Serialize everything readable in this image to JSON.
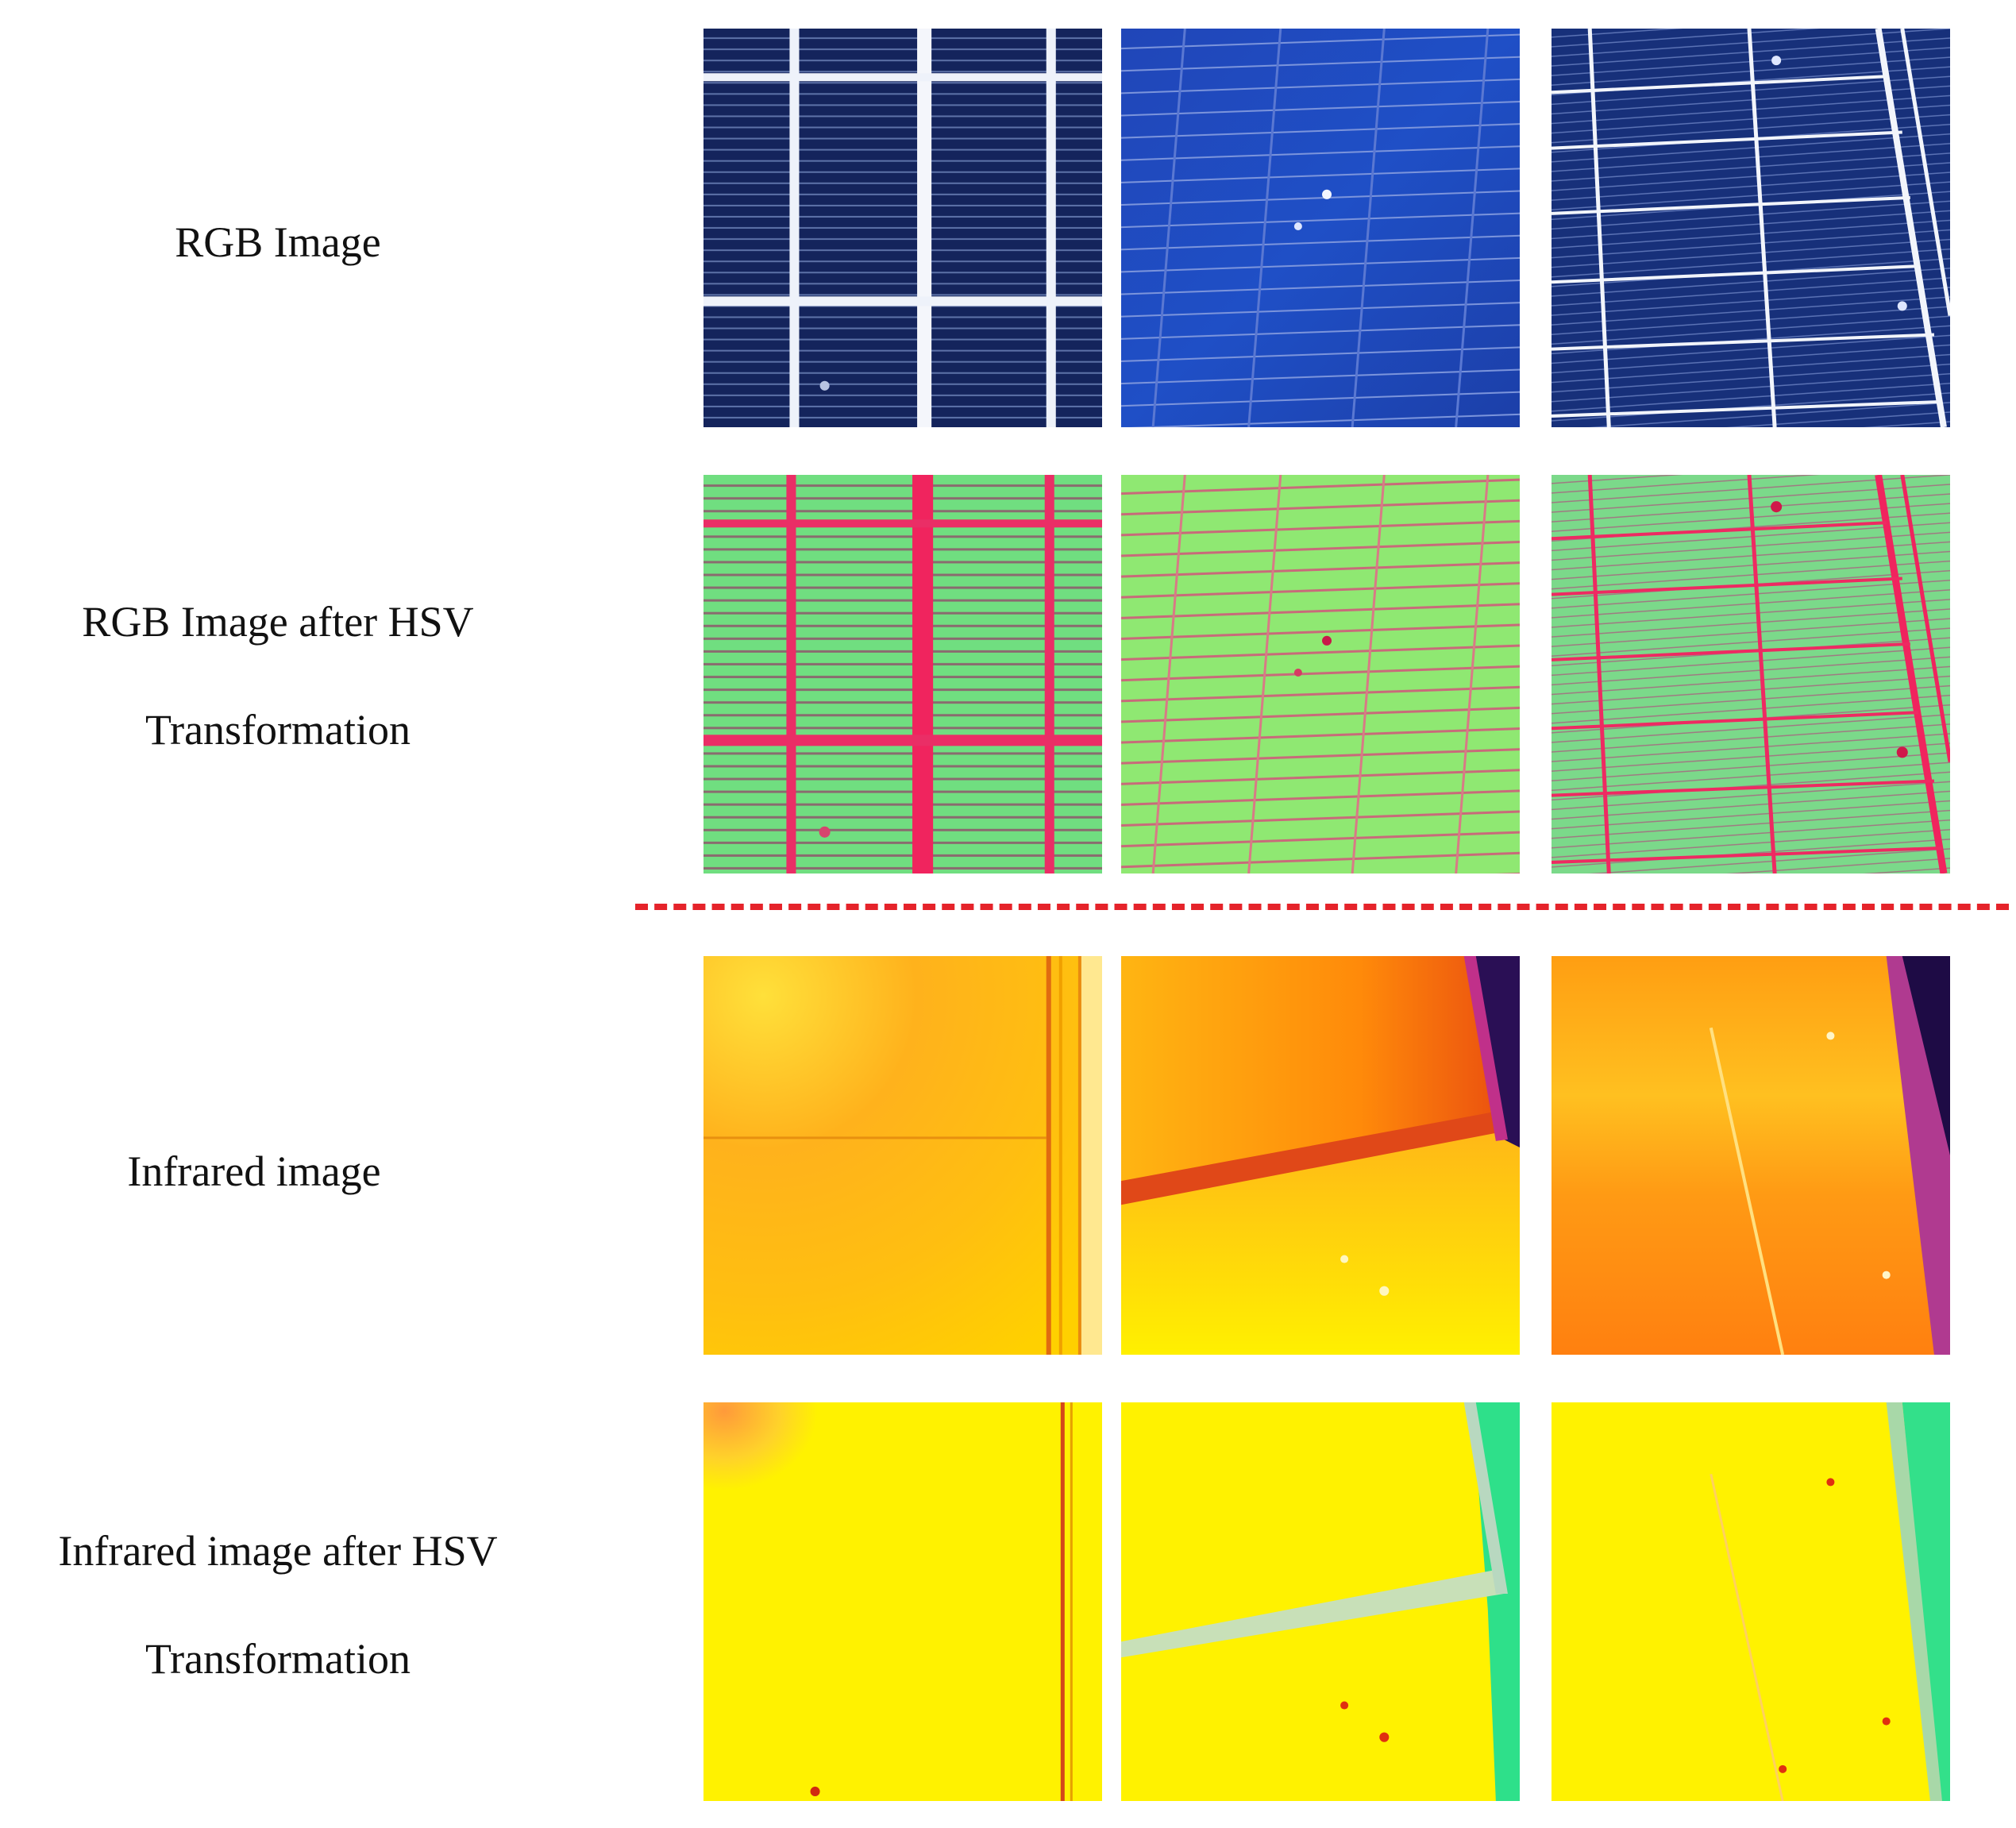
{
  "rows": [
    {
      "label_line1": "RGB Image",
      "label_line2": ""
    },
    {
      "label_line1": "RGB Image after HSV",
      "label_line2": "Transformation"
    },
    {
      "label_line1": "Infrared image",
      "label_line2": ""
    },
    {
      "label_line1": "Infrared image after HSV",
      "label_line2": "Transformation"
    }
  ],
  "colors": {
    "separator": "#e5232a",
    "rgb_panel": "#15245e",
    "rgb_panel_light": "#1e3f9a",
    "rgb_grid": "#e8eef8",
    "hsv_green": "#6fe07a",
    "hsv_magenta": "#f0245e",
    "ir_yellow": "#ffd200",
    "ir_orange": "#ff8a00",
    "ir_purple": "#3a1260",
    "irhsv_yellow": "#fff700",
    "irhsv_teal": "#33e08a"
  }
}
